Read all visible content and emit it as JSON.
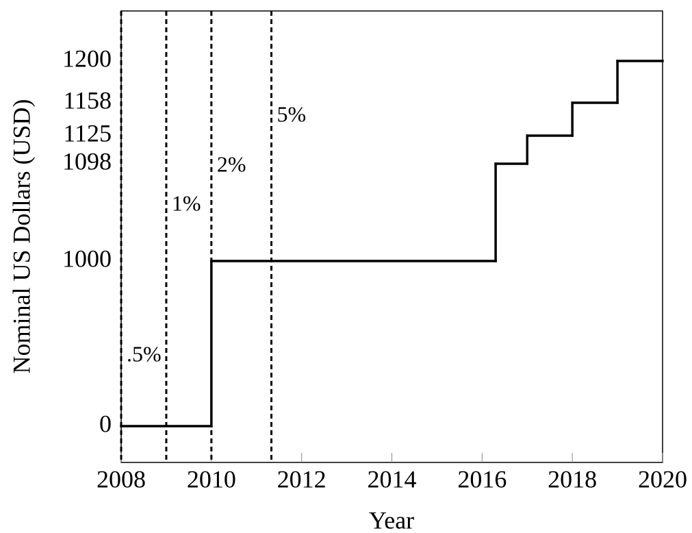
{
  "chart_data": {
    "type": "step",
    "x_label": "Year",
    "y_label": "Nominal US Dollars (USD)",
    "x": [
      2008,
      2010,
      2016.3,
      2017,
      2018,
      2019
    ],
    "values": [
      0,
      1000,
      1098,
      1125,
      1158,
      1200
    ],
    "color": "#000000",
    "xlim": [
      2008,
      2020
    ],
    "xticks": [
      2008,
      2010,
      2012,
      2014,
      2016,
      2018,
      2020
    ],
    "ylim": [
      -220,
      1250
    ],
    "yticks": [
      0,
      1000,
      1098,
      1125,
      1158,
      1200
    ],
    "yscale": "piecewise-linear",
    "vlines": [
      {
        "x": 2008,
        "label": ".5%"
      },
      {
        "x": 2009,
        "label": "1%"
      },
      {
        "x": 2010,
        "label": "2%"
      },
      {
        "x": 2011.33,
        "label": "5%"
      }
    ]
  }
}
